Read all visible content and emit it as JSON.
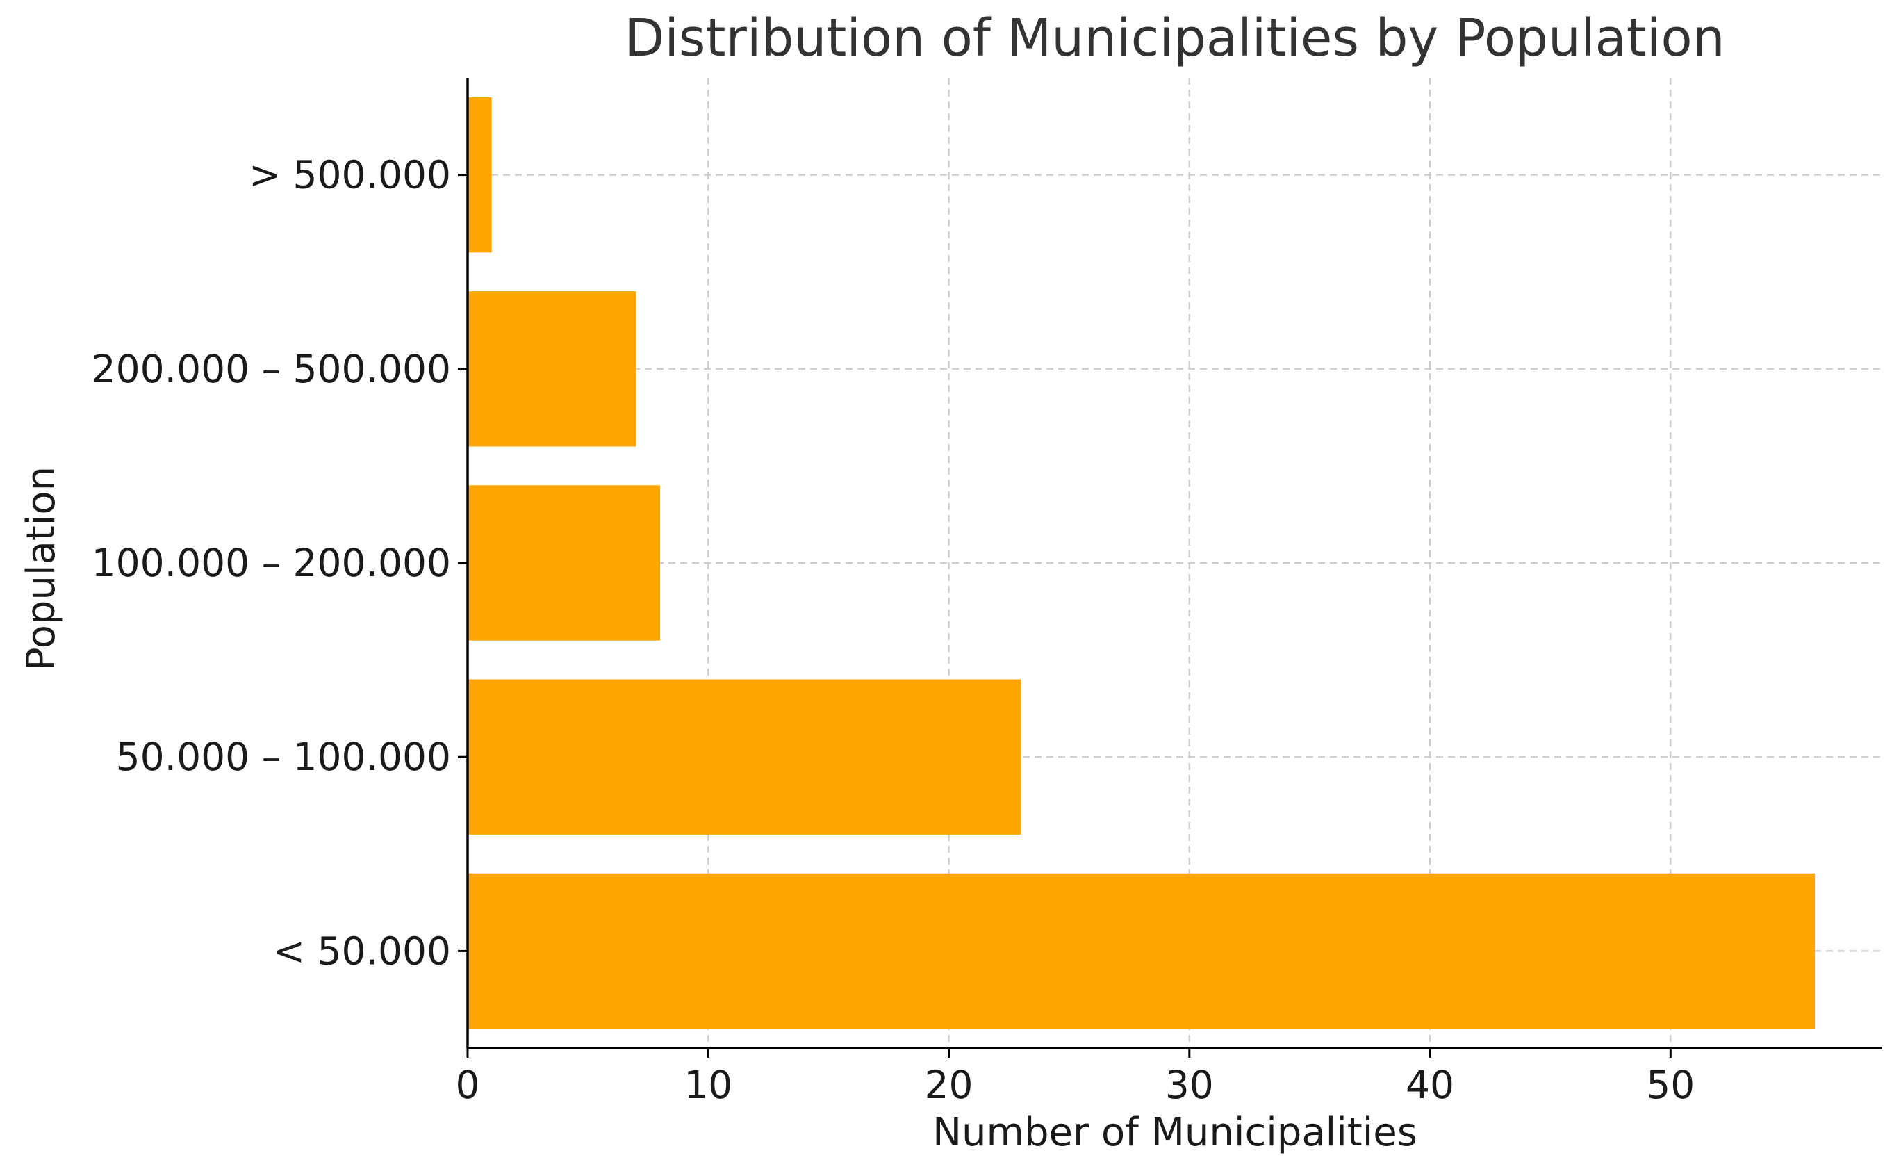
{
  "chart_data": {
    "type": "bar",
    "orientation": "horizontal",
    "title": "Distribution of Municipalities by Population",
    "xlabel": "Number of Municipalities",
    "ylabel": "Population",
    "categories": [
      "< 50.000",
      "50.000 – 100.000",
      "100.000 – 200.000",
      "200.000 – 500.000",
      "> 500.000"
    ],
    "values": [
      56,
      23,
      8,
      7,
      1
    ],
    "xlim": [
      0,
      58.8
    ],
    "xticks": [
      0,
      10,
      20,
      30,
      40,
      50
    ],
    "grid": true,
    "bar_color": "#FFA500",
    "grid_color": "#cccccc"
  }
}
